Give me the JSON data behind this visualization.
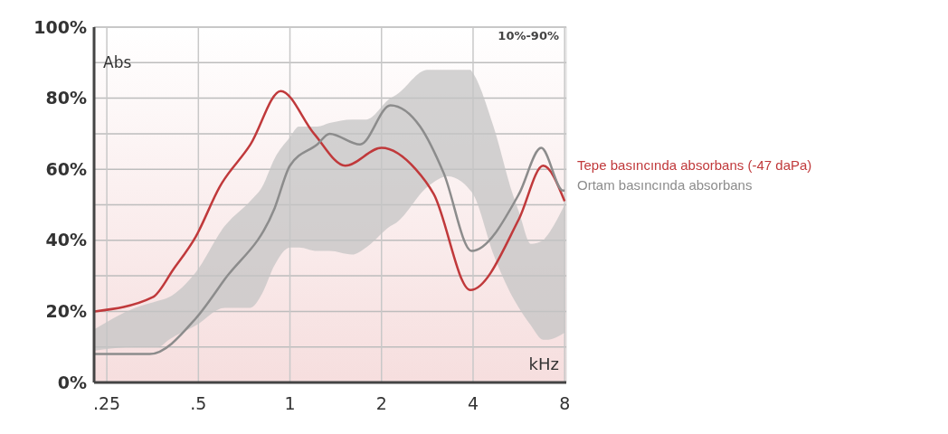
{
  "chart_data": {
    "type": "line",
    "xlabel": "kHz",
    "ylabel": "Abs",
    "log": "x",
    "grid": true,
    "legend": "right",
    "line_style": "solid",
    "marker": "none",
    "xlim": [
      0.227,
      8.1
    ],
    "xticks": [
      {
        "value": 0.25,
        "label": ".25"
      },
      {
        "value": 0.5,
        "label": ".5"
      },
      1,
      2,
      4,
      8
    ],
    "ylim": [
      0,
      100
    ],
    "yticks": [
      {
        "value": 0,
        "label": "0%"
      },
      {
        "value": 10,
        "label": null
      },
      {
        "value": 20,
        "label": "20%"
      },
      {
        "value": 30,
        "label": null
      },
      {
        "value": 40,
        "label": "40%"
      },
      {
        "value": 50,
        "label": null
      },
      {
        "value": 60,
        "label": "60%"
      },
      {
        "value": 70,
        "label": null
      },
      {
        "value": 80,
        "label": "80%"
      },
      {
        "value": 90,
        "label": null
      },
      {
        "value": 100,
        "label": "100%"
      }
    ],
    "annotations": [
      "10%-90%"
    ],
    "series": [
      {
        "type": "area",
        "color": "#c4c4c4",
        "x": [
          0.228,
          0.31,
          0.37,
          0.4,
          0.49,
          0.61,
          0.74,
          0.81,
          0.89,
          1.0,
          1.07,
          1.23,
          1.35,
          1.6,
          1.78,
          2.14,
          2.24,
          2.83,
          3.3,
          3.92,
          4.0,
          4.67,
          5.4,
          5.66,
          6.2,
          6.8,
          6.96,
          8.0
        ],
        "upper": [
          15,
          21,
          23,
          24,
          31,
          44,
          51,
          55,
          63,
          69,
          72,
          72,
          73,
          74,
          74,
          80,
          81,
          88,
          88,
          88,
          87,
          72,
          53,
          48,
          39,
          40,
          41,
          50
        ],
        "lower": [
          9,
          10,
          10,
          12,
          16,
          21,
          21,
          25,
          33,
          38,
          38,
          37,
          37,
          36,
          38,
          44,
          45,
          55,
          58,
          54,
          53,
          36,
          24,
          21,
          16,
          12,
          12,
          14
        ],
        "values": [
          null,
          null,
          null,
          null,
          null,
          null,
          null,
          null,
          null,
          null,
          null,
          null,
          null,
          null,
          null,
          null,
          null,
          null,
          null,
          null,
          null,
          null,
          null,
          null,
          null,
          null,
          null,
          null
        ]
      },
      {
        "name": "Tepe basıncında absorbans (-47 daPa)",
        "color": "#c0393b",
        "x": [
          0.228,
          0.354,
          0.415,
          0.49,
          0.587,
          0.742,
          0.933,
          1.2,
          1.52,
          2.0,
          2.59,
          2.97,
          3.92,
          5.66,
          6.8,
          8.0
        ],
        "values": [
          20,
          24,
          32,
          41,
          55,
          67,
          82,
          70,
          61,
          66,
          60,
          53,
          26,
          46,
          61,
          51
        ]
      },
      {
        "name": "Ortam basıncında absorbans",
        "color": "#8c8c8c",
        "x": [
          0.228,
          0.346,
          0.49,
          0.61,
          0.89,
          1.0,
          1.23,
          1.35,
          1.7,
          2.14,
          2.68,
          3.2,
          3.96,
          5.66,
          6.7,
          7.9,
          8.0
        ],
        "values": [
          8,
          8,
          18,
          29,
          49,
          61,
          67,
          70,
          67,
          78,
          72,
          59,
          37,
          53,
          66,
          54,
          54
        ]
      }
    ]
  }
}
